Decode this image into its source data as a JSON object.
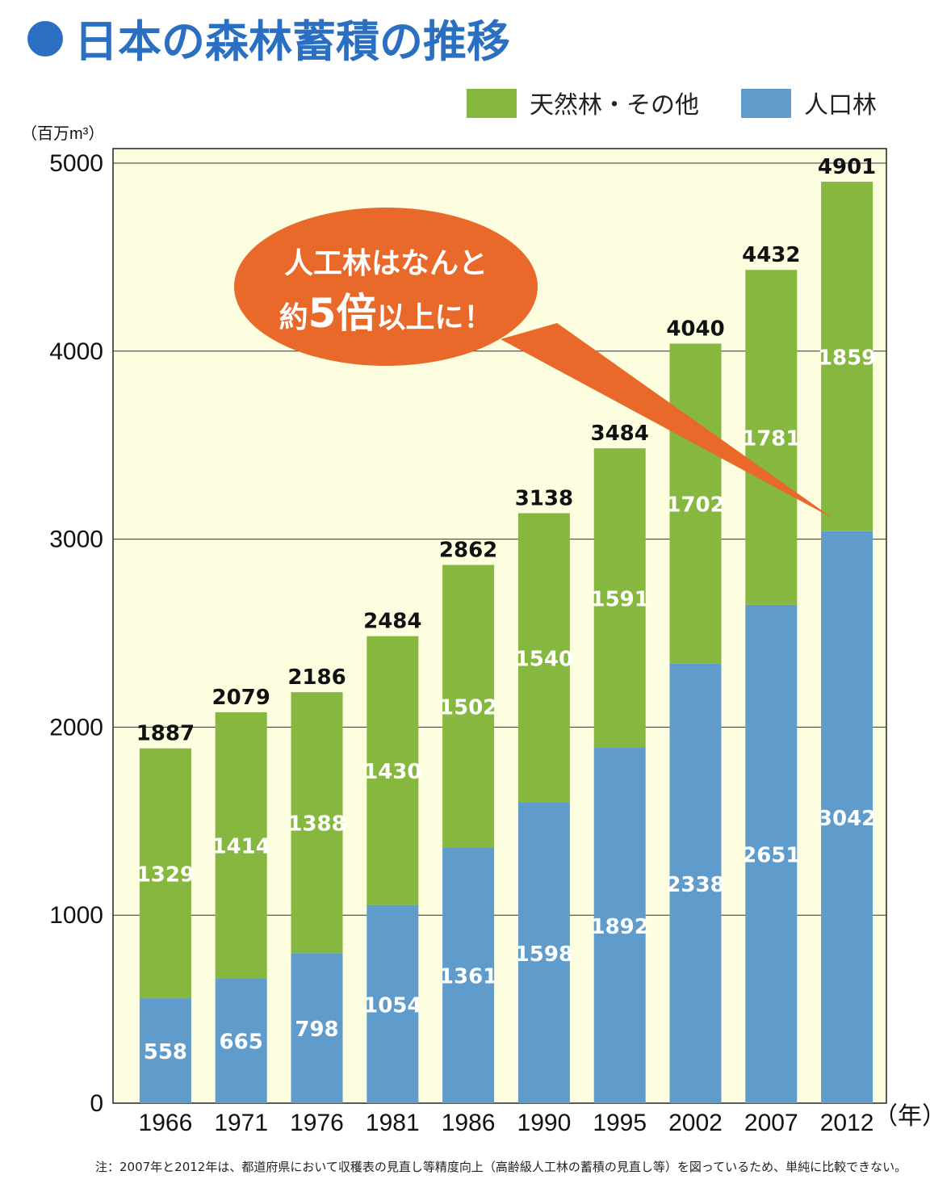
{
  "title": "日本の森林蓄積の推移",
  "colors": {
    "natural": "#86b83f",
    "planted": "#5f9ccb",
    "title": "#2a6fc1",
    "background": "#fdfde0",
    "callout": "#e8692a"
  },
  "legend": {
    "natural_label": "天然林・その他",
    "planted_label": "人口林"
  },
  "callout": {
    "line1": "人工林はなんと",
    "line2_prefix": "約",
    "line2_emph": "5倍",
    "line2_suffix": "以上に！"
  },
  "note": "注：2007年と2012年は、都道府県において収穫表の見直し等精度向上（高齢級人工林の蓄積の見直し等）を図っているため、単純に比較できない。",
  "chart_data": {
    "type": "bar",
    "stacked": true,
    "categories": [
      "1966",
      "1971",
      "1976",
      "1981",
      "1986",
      "1990",
      "1995",
      "2002",
      "2007",
      "2012"
    ],
    "series": [
      {
        "name": "人口林",
        "values": [
          558,
          665,
          798,
          1054,
          1361,
          1598,
          1892,
          2338,
          2651,
          3042
        ]
      },
      {
        "name": "天然林・その他",
        "values": [
          1329,
          1414,
          1388,
          1430,
          1502,
          1540,
          1591,
          1702,
          1781,
          1859
        ]
      }
    ],
    "totals": [
      1887,
      2079,
      2186,
      2484,
      2862,
      3138,
      3484,
      4040,
      4432,
      4901
    ],
    "ylabel": "（百万m³）",
    "xunit": "（年）",
    "ylim": [
      0,
      5000
    ],
    "yticks": [
      "0",
      "1000",
      "2000",
      "3000",
      "4000",
      "5000"
    ],
    "grid": true,
    "legend_position": "top-right"
  }
}
